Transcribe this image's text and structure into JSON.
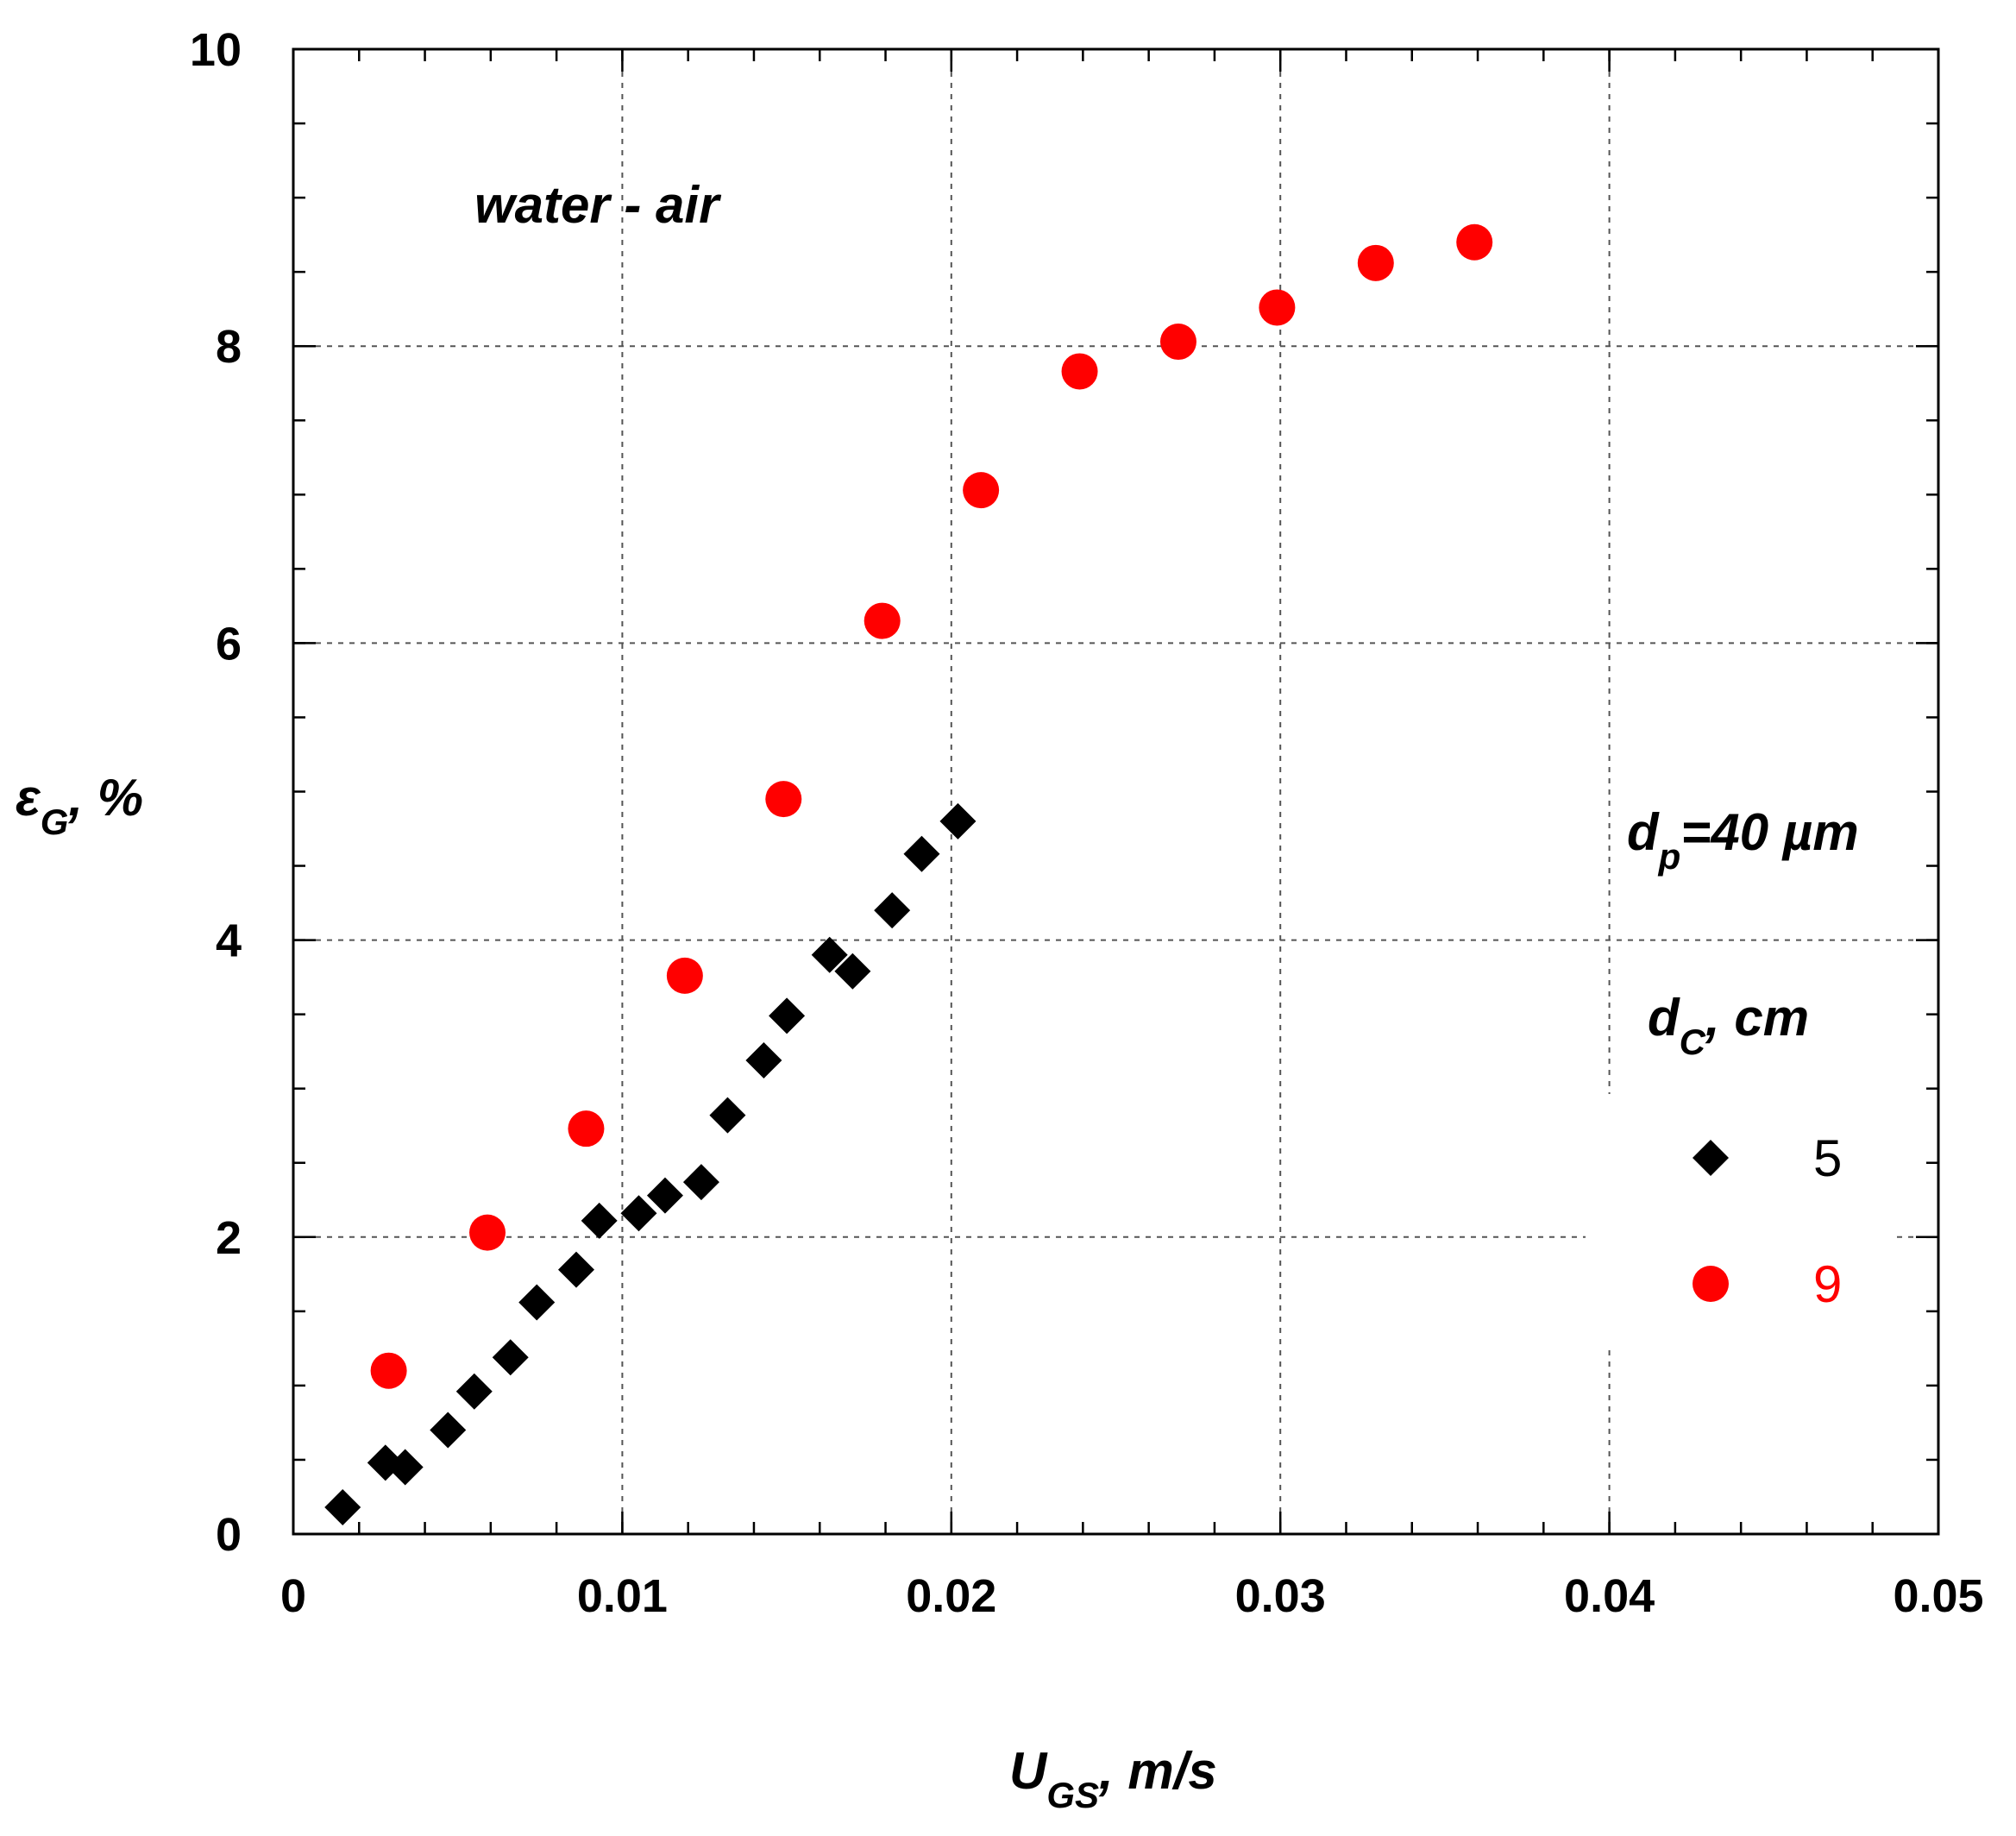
{
  "chart_data": {
    "type": "scatter",
    "title": "",
    "xlabel": {
      "main": "U",
      "sub": "GS",
      "suffix": ", m/s"
    },
    "ylabel": {
      "main": "ε",
      "sub": "G",
      "suffix": ", %"
    },
    "xlim": [
      0,
      0.05
    ],
    "ylim": [
      0,
      10
    ],
    "x_ticks": [
      0,
      0.01,
      0.02,
      0.03,
      0.04,
      0.05
    ],
    "x_tick_labels": [
      "0",
      "0.01",
      "0.02",
      "0.03",
      "0.04",
      "0.05"
    ],
    "y_ticks": [
      0,
      2,
      4,
      6,
      8,
      10
    ],
    "y_tick_labels": [
      "0",
      "2",
      "4",
      "6",
      "8",
      "10"
    ],
    "x_minor_step": 0.002,
    "y_minor_step": 0.5,
    "grid": true,
    "annotations": {
      "system": "water - air",
      "particle": {
        "main": "d",
        "sub": "p",
        "suffix": "=40 µm"
      },
      "legend_title": {
        "main": "d",
        "sub": "C",
        "suffix": ", cm"
      }
    },
    "legend_position": "right",
    "series": [
      {
        "name": "5",
        "marker": "diamond",
        "color": "#000000",
        "x": [
          0.0015,
          0.0028,
          0.0034,
          0.0047,
          0.0055,
          0.0066,
          0.0074,
          0.0086,
          0.0093,
          0.0105,
          0.0113,
          0.0124,
          0.0132,
          0.0143,
          0.015,
          0.0163,
          0.017,
          0.0182,
          0.0191,
          0.0202
        ],
        "y": [
          0.18,
          0.48,
          0.45,
          0.7,
          0.96,
          1.19,
          1.56,
          1.78,
          2.11,
          2.16,
          2.28,
          2.37,
          2.82,
          3.19,
          3.49,
          3.9,
          3.79,
          4.2,
          4.58,
          4.8
        ]
      },
      {
        "name": "9",
        "marker": "circle",
        "color": "#ff0000",
        "x": [
          0.0029,
          0.0059,
          0.0089,
          0.0119,
          0.0149,
          0.0179,
          0.0209,
          0.0239,
          0.0269,
          0.0299,
          0.0329,
          0.0359
        ],
        "y": [
          1.1,
          2.03,
          2.73,
          3.76,
          4.95,
          6.15,
          7.03,
          7.83,
          8.03,
          8.26,
          8.56,
          8.7
        ]
      }
    ]
  }
}
